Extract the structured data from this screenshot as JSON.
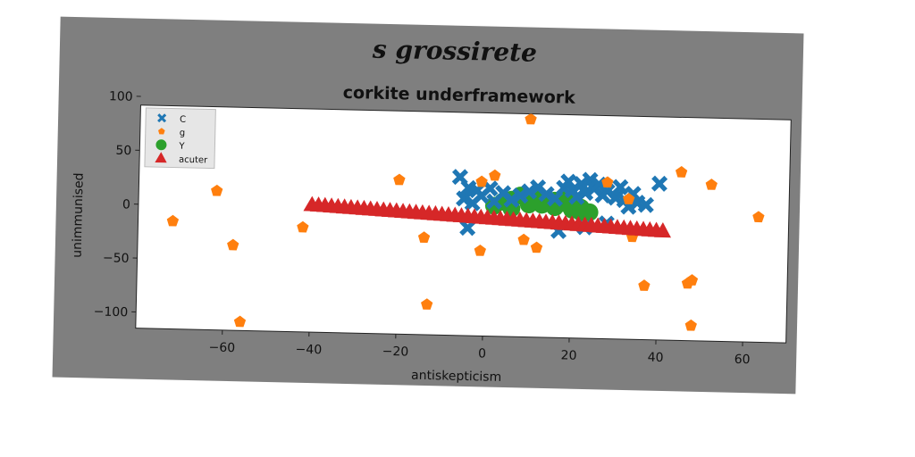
{
  "chart_data": {
    "type": "scatter",
    "suptitle": "s grossirete",
    "title": "corkite underframework",
    "xlabel": "antiskepticism",
    "ylabel": "unimmunised",
    "xlim": [
      -80,
      70
    ],
    "ylim": [
      -115,
      92
    ],
    "xticks": [
      -60,
      -40,
      -20,
      0,
      20,
      40,
      60
    ],
    "yticks": [
      100,
      50,
      0,
      -50,
      -100
    ],
    "grid": false,
    "legend_position": "upper-left",
    "series": [
      {
        "name": "C",
        "marker": "x",
        "color": "#1f77b4",
        "points": [
          [
            -6,
            32
          ],
          [
            -4,
            22
          ],
          [
            -2,
            20
          ],
          [
            -5,
            12
          ],
          [
            -3,
            8
          ],
          [
            -1,
            15
          ],
          [
            -4,
            -15
          ],
          [
            1,
            22
          ],
          [
            2,
            10
          ],
          [
            4,
            18
          ],
          [
            6,
            12
          ],
          [
            8,
            16
          ],
          [
            10,
            20
          ],
          [
            12,
            24
          ],
          [
            14,
            18
          ],
          [
            16,
            14
          ],
          [
            18,
            24
          ],
          [
            19,
            30
          ],
          [
            20,
            22
          ],
          [
            21,
            16
          ],
          [
            22,
            28
          ],
          [
            23,
            20
          ],
          [
            24,
            32
          ],
          [
            25,
            24
          ],
          [
            26,
            28
          ],
          [
            27,
            18
          ],
          [
            28,
            22
          ],
          [
            30,
            16
          ],
          [
            31,
            26
          ],
          [
            32,
            14
          ],
          [
            33,
            8
          ],
          [
            34,
            20
          ],
          [
            35,
            12
          ],
          [
            37,
            10
          ],
          [
            40,
            30
          ],
          [
            17,
            -16
          ],
          [
            23,
            -12
          ],
          [
            28,
            -8
          ]
        ]
      },
      {
        "name": "g",
        "marker": "pentagon",
        "color": "#ff7f0e",
        "points": [
          [
            10,
            87
          ],
          [
            -62,
            14
          ],
          [
            -72,
            -15
          ],
          [
            -58,
            -36
          ],
          [
            -56,
            -107
          ],
          [
            -42,
            -18
          ],
          [
            -20,
            28
          ],
          [
            -14,
            -25
          ],
          [
            -13,
            -87
          ],
          [
            -1,
            28
          ],
          [
            2,
            34
          ],
          [
            -1,
            -36
          ],
          [
            9,
            -25
          ],
          [
            12,
            -32
          ],
          [
            28,
            30
          ],
          [
            33,
            15
          ],
          [
            34,
            -20
          ],
          [
            37,
            -65
          ],
          [
            45,
            41
          ],
          [
            47,
            -62
          ],
          [
            48,
            -101
          ],
          [
            48,
            -59
          ],
          [
            52,
            30
          ],
          [
            63,
            1
          ]
        ]
      },
      {
        "name": "Y",
        "marker": "circle",
        "color": "#2ca02c",
        "points": [
          [
            2,
            6
          ],
          [
            4,
            10
          ],
          [
            6,
            12
          ],
          [
            8,
            16
          ],
          [
            10,
            8
          ],
          [
            12,
            14
          ],
          [
            14,
            10
          ],
          [
            16,
            6
          ],
          [
            18,
            10
          ],
          [
            20,
            4
          ],
          [
            22,
            6
          ],
          [
            24,
            2
          ],
          [
            6,
            4
          ],
          [
            10,
            12
          ],
          [
            13,
            8
          ],
          [
            16,
            12
          ],
          [
            19,
            14
          ],
          [
            22,
            2
          ]
        ]
      },
      {
        "name": "acuter",
        "marker": "triangle",
        "color": "#d62728",
        "x_start": -40,
        "x_end": 41,
        "y_start": 3,
        "y_end": -14,
        "count": 55
      }
    ]
  }
}
